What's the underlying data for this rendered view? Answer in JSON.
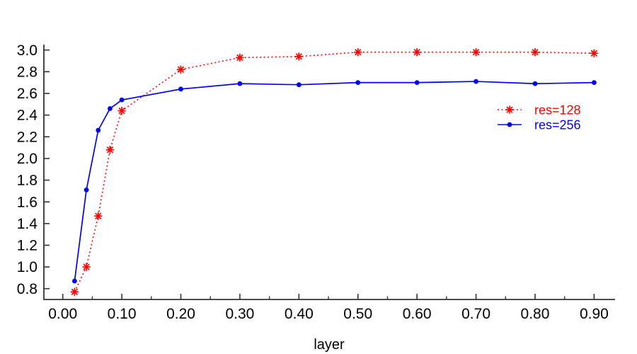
{
  "figure": {
    "background": "#ffffff"
  },
  "chart_data": {
    "type": "line",
    "title": "",
    "xlabel": "layer",
    "ylabel": "",
    "grid": false,
    "legend_position": "inside top-right",
    "xlim": [
      -0.032,
      0.9355
    ],
    "ylim": [
      0.7,
      3.05
    ],
    "x": [
      0.02,
      0.04,
      0.06,
      0.08,
      0.1,
      0.2,
      0.3,
      0.4,
      0.5,
      0.6,
      0.7,
      0.8,
      0.9
    ],
    "series": [
      {
        "name": "res=128",
        "color": "#ff0000",
        "line_style": "dotted",
        "marker": "asterisk",
        "values": [
          0.77,
          1.0,
          1.47,
          2.08,
          2.44,
          2.82,
          2.93,
          2.94,
          2.98,
          2.98,
          2.98,
          2.98,
          2.97
        ]
      },
      {
        "name": "res=256",
        "color": "#0000ff",
        "line_style": "solid",
        "marker": "dot",
        "values": [
          0.87,
          1.71,
          2.26,
          2.46,
          2.54,
          2.64,
          2.69,
          2.68,
          2.7,
          2.7,
          2.71,
          2.69,
          2.7
        ]
      }
    ],
    "x_tick_values": [
      0.0,
      0.1,
      0.2,
      0.3,
      0.4,
      0.5,
      0.6,
      0.7,
      0.8,
      0.9
    ],
    "x_tick_labels": [
      "0.00",
      "0.10",
      "0.20",
      "0.30",
      "0.40",
      "0.50",
      "0.60",
      "0.70",
      "0.80",
      "0.90"
    ],
    "x_minor_tick_values": [
      0.05,
      0.15,
      0.25,
      0.35,
      0.45,
      0.55,
      0.65,
      0.75,
      0.85
    ],
    "y_tick_values": [
      0.8,
      1.0,
      1.2,
      1.4,
      1.6,
      1.8,
      2.0,
      2.2,
      2.4,
      2.6,
      2.8,
      3.0
    ],
    "y_tick_labels": [
      "0.8",
      "1.0",
      "1.2",
      "1.4",
      "1.6",
      "1.8",
      "2.0",
      "2.2",
      "2.4",
      "2.6",
      "2.8",
      "3.0"
    ]
  },
  "colors": {
    "axis": "#333333",
    "tick_text": "#000000",
    "series_red": "#ff0000",
    "series_blue": "#0000ff"
  }
}
